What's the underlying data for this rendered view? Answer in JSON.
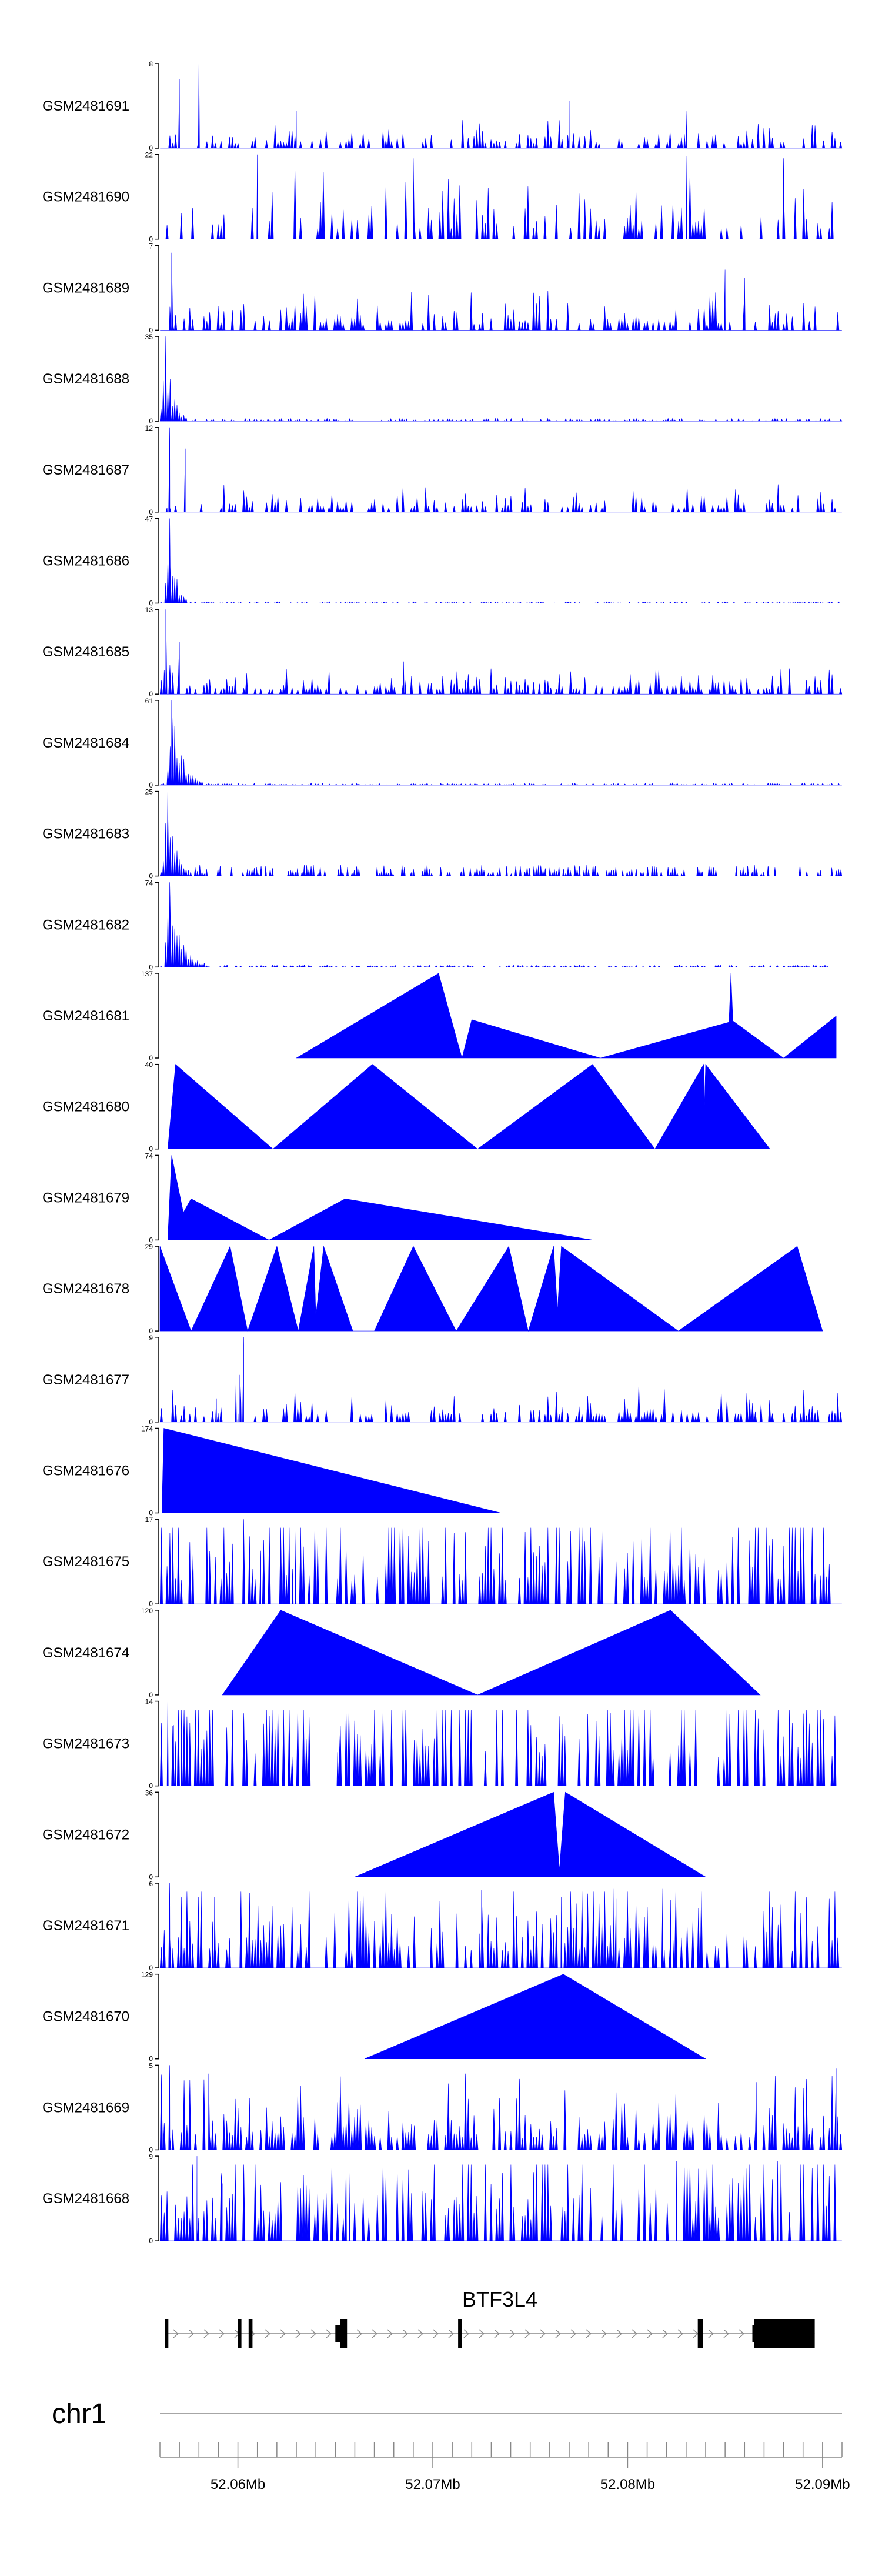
{
  "chart_data": {
    "type": "area",
    "region": {
      "chromosome": "chr1",
      "start": 52056000,
      "end": 52091000
    },
    "fill_color": "#0000ff",
    "gene_color": "#000000",
    "axis_color": "#000000",
    "genome_axis_color": "#888888",
    "tracks": [
      {
        "name": "GSM2481691",
        "ymax": 8,
        "mode": "noise",
        "seed": 691,
        "base": 0.22,
        "prob": 0.45,
        "spikes": [
          [
            52058,
            8
          ],
          [
            52057,
            6.5
          ],
          [
            52063,
            3.5
          ],
          [
            52077,
            4.5
          ],
          [
            52083,
            3.5
          ]
        ]
      },
      {
        "name": "GSM2481690",
        "ymax": 22,
        "mode": "noise",
        "seed": 690,
        "base": 0.5,
        "prob": 0.32,
        "spikes": [
          [
            52061,
            22
          ],
          [
            52069,
            21
          ],
          [
            52083,
            21.5
          ],
          [
            52088,
            21
          ]
        ]
      },
      {
        "name": "GSM2481689",
        "ymax": 7,
        "mode": "noise",
        "seed": 689,
        "base": 0.28,
        "prob": 0.5,
        "spikes": [
          [
            52056.6,
            6.4
          ],
          [
            52085,
            5
          ],
          [
            52086,
            4.3
          ]
        ]
      },
      {
        "name": "GSM2481688",
        "ymax": 35,
        "mode": "peak",
        "seed": 688,
        "peak": [
          52056.3,
          35,
          0.35
        ],
        "tail": 0.02
      },
      {
        "name": "GSM2481687",
        "ymax": 12,
        "mode": "noise",
        "seed": 687,
        "base": 0.18,
        "prob": 0.5,
        "spikes": [
          [
            52056.5,
            12
          ],
          [
            52057.3,
            9
          ]
        ]
      },
      {
        "name": "GSM2481686",
        "ymax": 47,
        "mode": "peak",
        "seed": 686,
        "peak": [
          52056.5,
          47,
          0.3
        ],
        "tail": 0.01
      },
      {
        "name": "GSM2481685",
        "ymax": 13,
        "mode": "noise",
        "seed": 685,
        "base": 0.2,
        "prob": 0.6,
        "spikes": [
          [
            52056.3,
            13
          ],
          [
            52057,
            8
          ],
          [
            52068.5,
            5
          ]
        ]
      },
      {
        "name": "GSM2481684",
        "ymax": 61,
        "mode": "peak",
        "seed": 684,
        "peak": [
          52056.6,
          61,
          0.55
        ],
        "tail": 0.015
      },
      {
        "name": "GSM2481683",
        "ymax": 25,
        "mode": "peak",
        "seed": 683,
        "peak": [
          52056.4,
          25,
          0.4
        ],
        "tail": 0.08
      },
      {
        "name": "GSM2481682",
        "ymax": 74,
        "mode": "peak",
        "seed": 682,
        "peak": [
          52056.5,
          74,
          0.6
        ],
        "tail": 0.015
      },
      {
        "name": "GSM2481681",
        "ymax": 137,
        "mode": "points",
        "points": [
          [
            52063,
            0
          ],
          [
            52070.3,
            137
          ],
          [
            52071.5,
            0
          ],
          [
            52072,
            62
          ],
          [
            52078.6,
            0
          ],
          [
            52085.2,
            58
          ],
          [
            52085.3,
            137
          ],
          [
            52085.4,
            60
          ],
          [
            52088,
            0
          ],
          [
            52090.7,
            68
          ],
          [
            52090.7,
            0
          ]
        ]
      },
      {
        "name": "GSM2481680",
        "ymax": 40,
        "mode": "points",
        "points": [
          [
            52056.4,
            0
          ],
          [
            52056.8,
            40
          ],
          [
            52061.8,
            0
          ],
          [
            52066.9,
            40
          ],
          [
            52072.3,
            0
          ],
          [
            52078.2,
            40
          ],
          [
            52081.4,
            0
          ],
          [
            52083.9,
            40
          ],
          [
            52083.9,
            8
          ],
          [
            52084.0,
            40
          ],
          [
            52087.3,
            0
          ]
        ]
      },
      {
        "name": "GSM2481679",
        "ymax": 74,
        "mode": "points",
        "points": [
          [
            52056.4,
            0
          ],
          [
            52056.6,
            74
          ],
          [
            52057.2,
            24
          ],
          [
            52057.6,
            36
          ],
          [
            52061.6,
            0
          ],
          [
            52065.5,
            36
          ],
          [
            52078.2,
            0
          ]
        ]
      },
      {
        "name": "GSM2481678",
        "ymax": 29,
        "mode": "points",
        "points": [
          [
            52056,
            29
          ],
          [
            52057.6,
            0
          ],
          [
            52059.6,
            29
          ],
          [
            52060.5,
            0
          ],
          [
            52062.0,
            29
          ],
          [
            52063.1,
            0
          ],
          [
            52063.9,
            29
          ],
          [
            52064.0,
            5
          ],
          [
            52064.4,
            29
          ],
          [
            52065.9,
            0
          ],
          [
            52067.0,
            0
          ],
          [
            52069.0,
            29
          ],
          [
            52071.2,
            0
          ],
          [
            52073.9,
            29
          ],
          [
            52074.9,
            0
          ],
          [
            52076.2,
            29
          ],
          [
            52076.4,
            7
          ],
          [
            52076.6,
            29
          ],
          [
            52082.6,
            0
          ],
          [
            52088.7,
            29
          ],
          [
            52090.0,
            0
          ]
        ]
      },
      {
        "name": "GSM2481677",
        "ymax": 9,
        "mode": "noise",
        "seed": 677,
        "base": 0.25,
        "prob": 0.5,
        "spikes": [
          [
            52060.3,
            9
          ],
          [
            52060.1,
            5
          ],
          [
            52058.9,
            2.5
          ],
          [
            52059.9,
            4
          ]
        ]
      },
      {
        "name": "GSM2481676",
        "ymax": 174,
        "mode": "points",
        "points": [
          [
            52056.1,
            0
          ],
          [
            52056.2,
            174
          ],
          [
            52073.5,
            0
          ]
        ]
      },
      {
        "name": "GSM2481675",
        "ymax": 17,
        "mode": "noise",
        "seed": 675,
        "base": 1.1,
        "prob": 0.6,
        "spikes": [
          [
            52060.3,
            17
          ],
          [
            52057.7,
            10
          ],
          [
            52061.3,
            9
          ],
          [
            52062.8,
            7
          ]
        ]
      },
      {
        "name": "GSM2481674",
        "ymax": 120,
        "mode": "points",
        "points": [
          [
            52059.2,
            0
          ],
          [
            52062.2,
            120
          ],
          [
            52072.3,
            0
          ],
          [
            52082.2,
            120
          ],
          [
            52086.8,
            0
          ]
        ]
      },
      {
        "name": "GSM2481673",
        "ymax": 14,
        "mode": "noise",
        "seed": 673,
        "base": 1.3,
        "prob": 0.55,
        "spikes": [
          [
            52056.4,
            14
          ],
          [
            52056.7,
            10
          ],
          [
            52057.2,
            7
          ],
          [
            52065.2,
            5
          ]
        ]
      },
      {
        "name": "GSM2481672",
        "ymax": 36,
        "mode": "points",
        "points": [
          [
            52066,
            0
          ],
          [
            52076.2,
            36
          ],
          [
            52076.5,
            3
          ],
          [
            52076.8,
            36
          ],
          [
            52084,
            0
          ]
        ]
      },
      {
        "name": "GSM2481671",
        "ymax": 6,
        "mode": "noise",
        "seed": 671,
        "base": 0.8,
        "prob": 0.55,
        "spikes": [
          [
            52056.5,
            6
          ],
          [
            52058.8,
            5
          ],
          [
            52072.5,
            5.5
          ],
          [
            52079.3,
            5.6
          ],
          [
            52076.6,
            5
          ],
          [
            52081.8,
            5.6
          ],
          [
            52082.2,
            4.8
          ]
        ]
      },
      {
        "name": "GSM2481670",
        "ymax": 129,
        "mode": "points",
        "points": [
          [
            52066.5,
            0
          ],
          [
            52076.7,
            129
          ],
          [
            52084,
            0
          ]
        ]
      },
      {
        "name": "GSM2481669",
        "ymax": 5,
        "mode": "noise",
        "seed": 669,
        "base": 0.55,
        "prob": 0.6,
        "spikes": [
          [
            52056.5,
            5
          ],
          [
            52058.5,
            4.5
          ],
          [
            52090.7,
            4.8
          ],
          [
            52086.6,
            4
          ]
        ]
      },
      {
        "name": "GSM2481668",
        "ymax": 9,
        "mode": "noise",
        "seed": 668,
        "base": 1.0,
        "prob": 0.55,
        "spikes": [
          [
            52057.9,
            9
          ],
          [
            52065.7,
            8
          ],
          [
            52082.5,
            8.5
          ],
          [
            52087.7,
            8.5
          ],
          [
            52059.2,
            6
          ]
        ]
      }
    ],
    "gene": {
      "name": "BTF3L4",
      "strand": "+",
      "intron": [
        52056.3,
        52089.6
      ],
      "exons": [
        [
          52056.25,
          52056.4
        ],
        [
          52060.0,
          52060.1
        ],
        [
          52060.55,
          52060.75
        ],
        [
          52065.0,
          52065.25
        ],
        [
          52065.25,
          52065.6
        ],
        [
          52071.3,
          52071.45
        ],
        [
          52083.6,
          52083.85
        ],
        [
          52086.4,
          52086.5
        ],
        [
          52086.5,
          52087.1
        ],
        [
          52087.1,
          52089.6
        ]
      ],
      "thin_exons": [
        [
          52065.0,
          52065.25
        ],
        [
          52086.4,
          52086.5
        ]
      ]
    },
    "genome_axis": {
      "chromosome_label": "chr1",
      "ticks": [
        52056,
        52057,
        52058,
        52059,
        52060,
        52061,
        52062,
        52063,
        52064,
        52065,
        52066,
        52067,
        52068,
        52069,
        52070,
        52071,
        52072,
        52073,
        52074,
        52075,
        52076,
        52077,
        52078,
        52079,
        52080,
        52081,
        52082,
        52083,
        52084,
        52085,
        52086,
        52087,
        52088,
        52089,
        52090,
        52091
      ],
      "major_ticks": [
        52060,
        52070,
        52080,
        52090
      ],
      "tick_labels": [
        "52.06Mb",
        "52.07Mb",
        "52.08Mb",
        "52.09Mb"
      ]
    }
  }
}
